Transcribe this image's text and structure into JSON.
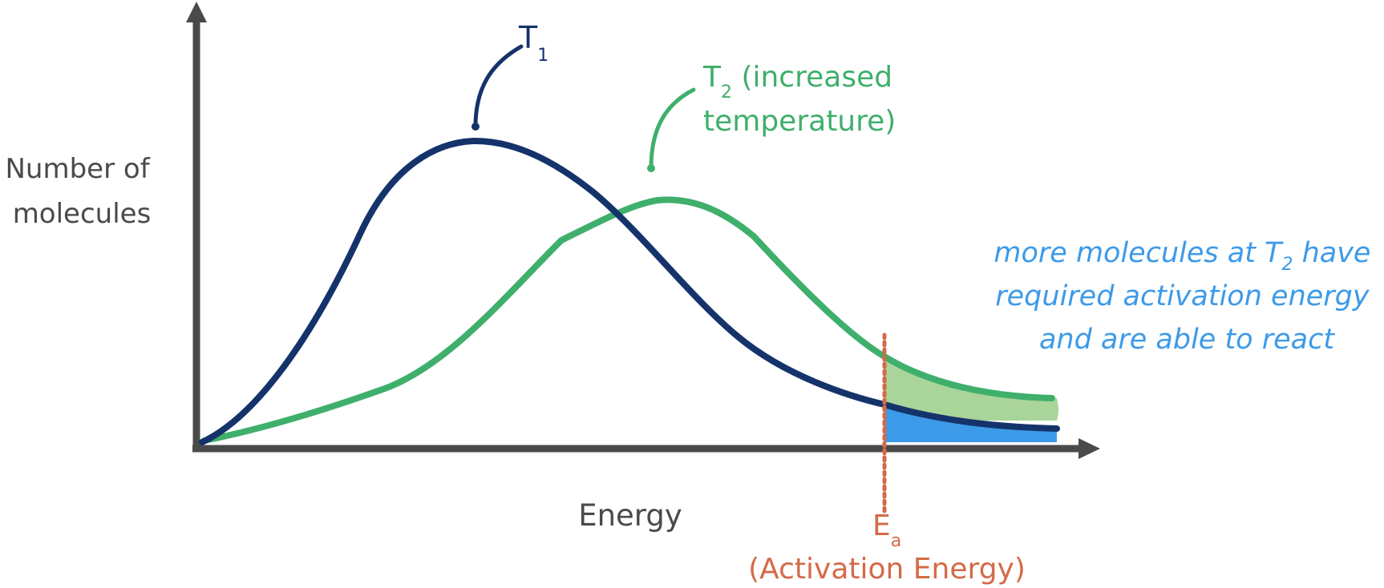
{
  "axes": {
    "y_label_line1": "Number of",
    "y_label_line2": "molecules",
    "x_label": "Energy"
  },
  "curves": {
    "t1": {
      "symbol": "T",
      "subscript": "1",
      "color": "#15336b"
    },
    "t2": {
      "symbol": "T",
      "subscript": "2",
      "label_rest": " (increased",
      "label_line2": "temperature)",
      "color": "#3faf6c"
    }
  },
  "activation": {
    "symbol": "E",
    "subscript": "a",
    "label": "(Activation Energy)",
    "color": "#d46a48"
  },
  "annotation": {
    "line1_prefix": "more molecules at T",
    "line1_subscript": "2",
    "line1_suffix": " have",
    "line2": "required activation energy",
    "line3": "and are able to react",
    "color": "#3d9ae8"
  },
  "colors": {
    "axis": "#4a4a4a",
    "area_t1": "#3d9ae8",
    "area_t2": "#a9d49a"
  }
}
